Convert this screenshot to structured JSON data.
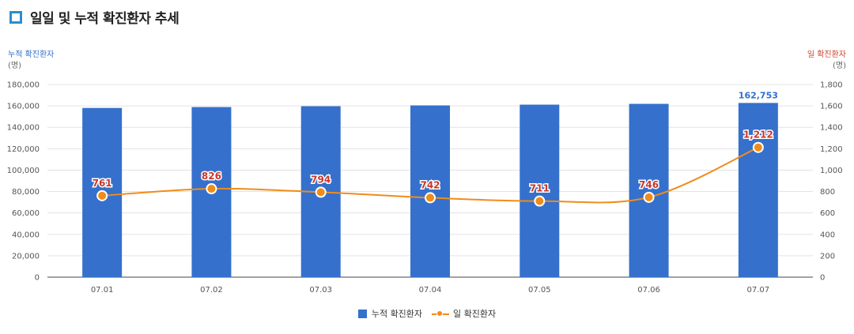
{
  "title": "일일 및 누적 확진환자 추세",
  "left_axis": {
    "title": "누적 확진환자",
    "unit": "(명)"
  },
  "right_axis": {
    "title": "일 확진환자",
    "unit": "(명)"
  },
  "colors": {
    "bar": "#3570cc",
    "line": "#f08c1a",
    "left_axis_title": "#2f6fcf",
    "right_axis_title": "#d2402a",
    "line_label": "#c8382a",
    "bar_label": "#2f6fcf"
  },
  "legend": {
    "bar": "누적 확진환자",
    "line": "일 확진환자"
  },
  "chart_data": {
    "type": "bar",
    "categories": [
      "07.01",
      "07.02",
      "07.03",
      "07.04",
      "07.05",
      "07.06",
      "07.07"
    ],
    "series": [
      {
        "name": "누적 확진환자",
        "type": "bar",
        "axis": "left",
        "values": [
          158085,
          158911,
          159705,
          160447,
          161158,
          161904,
          162753
        ],
        "labels": [
          "",
          "",
          "",
          "",
          "",
          "",
          "162,753"
        ]
      },
      {
        "name": "일 확진환자",
        "type": "line",
        "axis": "right",
        "values": [
          761,
          826,
          794,
          742,
          711,
          746,
          1212
        ],
        "labels": [
          "761",
          "826",
          "794",
          "742",
          "711",
          "746",
          "1,212"
        ]
      }
    ],
    "left_ticks": [
      "0",
      "20,000",
      "40,000",
      "60,000",
      "80,000",
      "100,000",
      "120,000",
      "140,000",
      "160,000",
      "180,000"
    ],
    "right_ticks": [
      "0",
      "200",
      "400",
      "600",
      "800",
      "1,000",
      "1,200",
      "1,400",
      "1,600",
      "1,800"
    ],
    "ylim_left": [
      0,
      180000
    ],
    "ylim_right": [
      0,
      1800
    ],
    "grid": true,
    "legend_position": "bottom"
  }
}
